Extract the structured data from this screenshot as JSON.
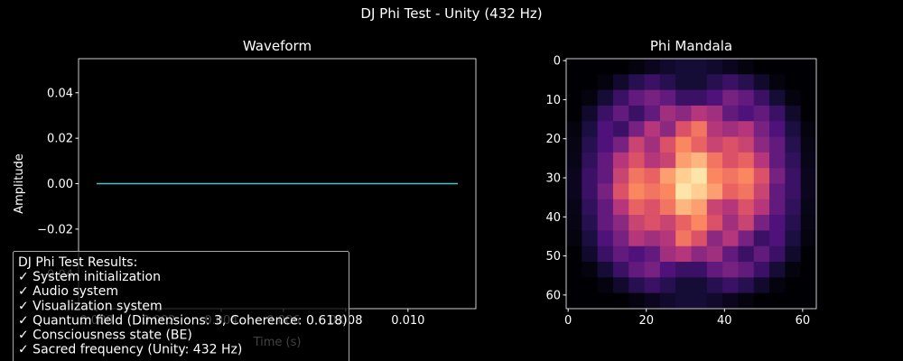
{
  "title": "DJ Phi Test - Unity (432 Hz)",
  "chart_data": [
    {
      "type": "line",
      "title": "Waveform",
      "x_label": "Time (s)",
      "y_label": "Amplitude",
      "x": [
        0,
        0.0116
      ],
      "series": [
        {
          "color": "#4ec3c9",
          "values": [
            0,
            0
          ]
        }
      ],
      "xlim": [
        -0.00058,
        0.01218
      ],
      "xticks": [
        {
          "value": 0,
          "label": "0.000"
        },
        {
          "value": 0.002,
          "label": "0.002"
        },
        {
          "value": 0.004,
          "label": "0.004"
        },
        {
          "value": 0.006,
          "label": "0.006"
        },
        {
          "value": 0.008,
          "label": "0.008"
        },
        {
          "value": 0.01,
          "label": "0.010"
        }
      ],
      "ylim": [
        -0.055,
        0.055
      ],
      "yticks": [
        {
          "value": -0.04,
          "label": "−0.04"
        },
        {
          "value": -0.02,
          "label": "−0.02"
        },
        {
          "value": 0,
          "label": "0.00"
        },
        {
          "value": 0.02,
          "label": "0.02"
        },
        {
          "value": 0.04,
          "label": "0.04"
        }
      ]
    },
    {
      "type": "heatmap",
      "title": "Phi Mandala",
      "colormap": "magma",
      "xlim": [
        -0.5,
        63.5
      ],
      "ylim": [
        63.5,
        -0.5
      ],
      "xticks": [
        0,
        20,
        40,
        60
      ],
      "yticks": [
        0,
        10,
        20,
        30,
        40,
        50,
        60
      ],
      "z": [
        [
          0,
          0,
          0,
          0,
          0.02,
          0.05,
          0.08,
          0.1,
          0.1,
          0.08,
          0.05,
          0.02,
          0,
          0,
          0,
          0
        ],
        [
          0,
          0,
          0.02,
          0.08,
          0.15,
          0.2,
          0.15,
          0.1,
          0.1,
          0.15,
          0.2,
          0.15,
          0.08,
          0.02,
          0,
          0
        ],
        [
          0,
          0.02,
          0.1,
          0.2,
          0.3,
          0.35,
          0.3,
          0.2,
          0.2,
          0.25,
          0.35,
          0.3,
          0.2,
          0.1,
          0.02,
          0
        ],
        [
          0,
          0.08,
          0.2,
          0.3,
          0.2,
          0.3,
          0.45,
          0.4,
          0.5,
          0.45,
          0.3,
          0.25,
          0.3,
          0.2,
          0.08,
          0
        ],
        [
          0.02,
          0.12,
          0.25,
          0.2,
          0.35,
          0.5,
          0.4,
          0.6,
          0.7,
          0.5,
          0.45,
          0.5,
          0.35,
          0.25,
          0.12,
          0.02
        ],
        [
          0.03,
          0.15,
          0.25,
          0.35,
          0.55,
          0.45,
          0.6,
          0.75,
          0.65,
          0.55,
          0.6,
          0.55,
          0.4,
          0.3,
          0.15,
          0.03
        ],
        [
          0.04,
          0.18,
          0.3,
          0.5,
          0.6,
          0.5,
          0.55,
          0.8,
          0.85,
          0.7,
          0.6,
          0.65,
          0.5,
          0.3,
          0.18,
          0.04
        ],
        [
          0.05,
          0.2,
          0.3,
          0.55,
          0.7,
          0.65,
          0.8,
          0.9,
          0.95,
          0.75,
          0.7,
          0.75,
          0.6,
          0.35,
          0.2,
          0.05
        ],
        [
          0.05,
          0.2,
          0.35,
          0.6,
          0.75,
          0.7,
          0.75,
          0.95,
          0.9,
          0.8,
          0.65,
          0.7,
          0.55,
          0.3,
          0.2,
          0.05
        ],
        [
          0.04,
          0.18,
          0.3,
          0.5,
          0.65,
          0.6,
          0.7,
          0.85,
          0.8,
          0.55,
          0.5,
          0.6,
          0.5,
          0.3,
          0.18,
          0.04
        ],
        [
          0.03,
          0.15,
          0.3,
          0.4,
          0.55,
          0.6,
          0.55,
          0.65,
          0.75,
          0.6,
          0.45,
          0.55,
          0.35,
          0.25,
          0.15,
          0.03
        ],
        [
          0.02,
          0.12,
          0.25,
          0.35,
          0.5,
          0.45,
          0.5,
          0.7,
          0.6,
          0.4,
          0.5,
          0.35,
          0.2,
          0.25,
          0.12,
          0.02
        ],
        [
          0,
          0.08,
          0.2,
          0.3,
          0.25,
          0.3,
          0.45,
          0.5,
          0.4,
          0.45,
          0.3,
          0.2,
          0.3,
          0.2,
          0.08,
          0
        ],
        [
          0,
          0.02,
          0.1,
          0.2,
          0.3,
          0.35,
          0.25,
          0.2,
          0.2,
          0.3,
          0.35,
          0.3,
          0.2,
          0.1,
          0.02,
          0
        ],
        [
          0,
          0,
          0.02,
          0.08,
          0.15,
          0.2,
          0.15,
          0.1,
          0.1,
          0.15,
          0.2,
          0.15,
          0.08,
          0.02,
          0,
          0
        ],
        [
          0,
          0,
          0,
          0,
          0.02,
          0.05,
          0.08,
          0.1,
          0.1,
          0.08,
          0.05,
          0.02,
          0,
          0,
          0,
          0
        ]
      ]
    }
  ],
  "results_box": {
    "lines": [
      "DJ Phi Test Results:",
      "✓ System initialization",
      "✓ Audio system",
      "✓ Visualization system",
      "✓ Quantum field (Dimensions: 3, Coherence: 0.618)",
      "✓ Consciousness state (BE)",
      "✓ Sacred frequency (Unity: 432 Hz)"
    ]
  }
}
